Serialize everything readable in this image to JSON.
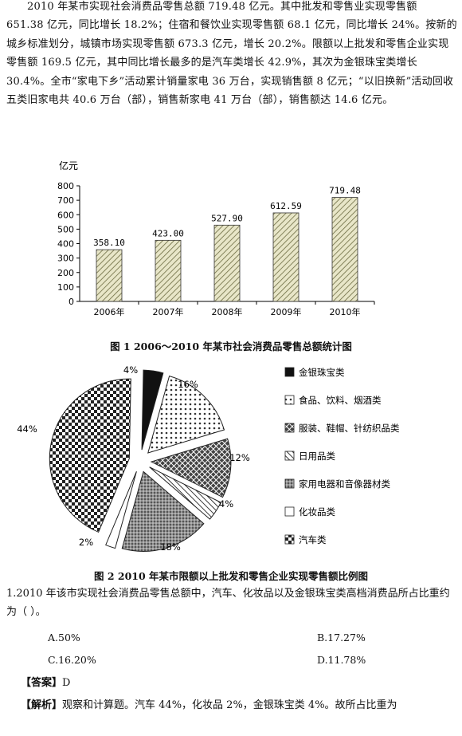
{
  "intro": "2010 年某市实现社会消费品零售总额 719.48 亿元。其中批发和零售业实现零售额 651.38 亿元，同比增长 18.2%；住宿和餐饮业实现零售额 68.1 亿元，同比增长 24%。按新的城乡标准划分，城镇市场实现零售额 673.3 亿元，增长 20.2%。限额以上批发和零售企业实现零售额 169.5 亿元，其中同比增长最多的是汽车类增长 42.9%，其次为金银珠宝类增长 30.4%。全市“家电下乡”活动累计销量家电 36 万台，实现销售额 8 亿元；“以旧换新”活动回收五类旧家电共 40.6 万台（部），销售新家电 41 万台（部），销售额达 14.6 亿元。",
  "chart_data": [
    {
      "type": "bar",
      "title": "图 1  2006～2010 年某市社会消费品零售总额统计图",
      "ylabel": "亿元",
      "ylim": [
        0,
        800
      ],
      "yticks": [
        0,
        100,
        200,
        300,
        400,
        500,
        600,
        700,
        800
      ],
      "categories": [
        "2006年",
        "2007年",
        "2008年",
        "2009年",
        "2010年"
      ],
      "values": [
        358.1,
        423.0,
        527.9,
        612.59,
        719.48
      ],
      "value_labels": [
        "358.10",
        "423.00",
        "527.90",
        "612.59",
        "719.48"
      ]
    },
    {
      "type": "pie",
      "title": "图 2   2010 年某市限额以上批发和零售企业实现零售额比例图",
      "legend_position": "right",
      "slices": [
        {
          "name": "金银珠宝类",
          "value": 4,
          "label": "4%"
        },
        {
          "name": "食品、饮料、烟酒类",
          "value": 16,
          "label": "16%"
        },
        {
          "name": "服装、鞋帽、针纺织品类",
          "value": 12,
          "label": "12%"
        },
        {
          "name": "日用品类",
          "value": 4,
          "label": "4%"
        },
        {
          "name": "家用电器和音像器材类",
          "value": 18,
          "label": "18%"
        },
        {
          "name": "化妆品类",
          "value": 2,
          "label": "2%"
        },
        {
          "name": "汽车类",
          "value": 44,
          "label": "44%"
        }
      ],
      "legend_order": [
        "金银珠宝类",
        "食品、饮料、烟酒类",
        "服装、鞋帽、针纺织品类",
        "日用品类",
        "家用电器和音像器材类",
        "化妆品类",
        "汽车类"
      ]
    }
  ],
  "question": "1.2010 年该市实现社会消费品零售总额中，汽车、化妆品以及金银珠宝类高档消费品所占比重约为（        ）。",
  "options": {
    "A": "A.50%",
    "B": "B.17.27%",
    "C": "C.16.20%",
    "D": "D.11.78%"
  },
  "answer_label": "【答案】",
  "answer": "D",
  "analysis_label": "【解析】",
  "analysis": "观察和计算题。汽车 44%，化妆品 2%，金银珠宝类 4%。故所占比重为"
}
